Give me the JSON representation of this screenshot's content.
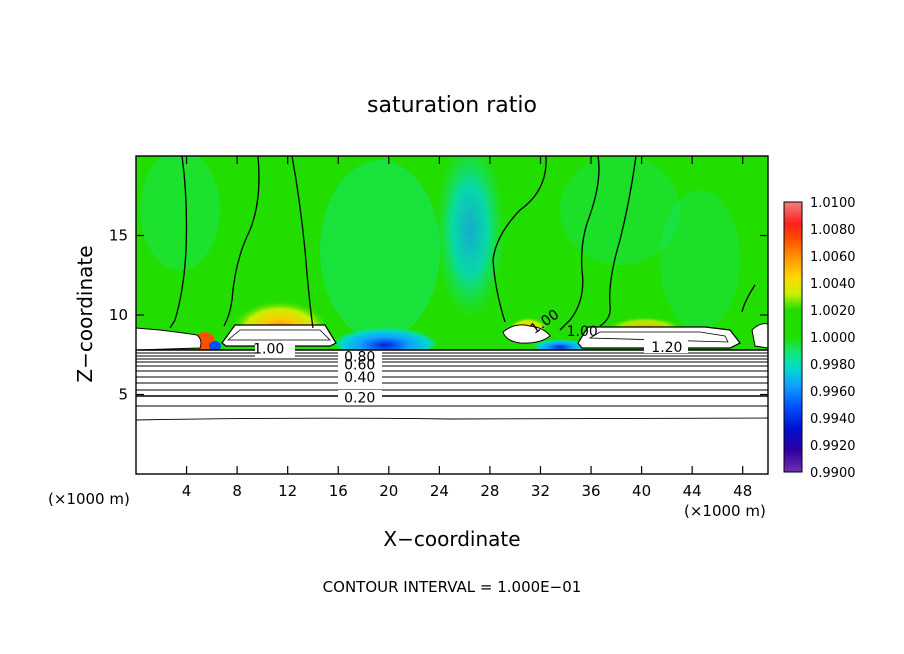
{
  "chart_data": {
    "type": "heatmap",
    "title": "saturation ratio",
    "xlabel": "X−coordinate",
    "ylabel": "Z−coordinate",
    "x_unit_left": "(×1000 m)",
    "x_unit_right": "(×1000 m)",
    "footer": "CONTOUR INTERVAL = 1.000E−01",
    "xlim": [
      0,
      50
    ],
    "ylim": [
      0,
      20
    ],
    "x_ticks": [
      4,
      8,
      12,
      16,
      20,
      24,
      28,
      32,
      36,
      40,
      44,
      48
    ],
    "y_ticks": [
      5,
      10,
      15
    ],
    "colorbar": {
      "min": 0.99,
      "max": 1.01,
      "labels": [
        "1.0100",
        "1.0080",
        "1.0060",
        "1.0040",
        "1.0020",
        "1.0000",
        "0.9980",
        "0.9960",
        "0.9940",
        "0.9920",
        "0.9900"
      ],
      "colors": [
        "#f08080",
        "#ff2020",
        "#ff5000",
        "#ff9000",
        "#ffd800",
        "#c8f000",
        "#22dd00",
        "#10e880",
        "#00d8d0",
        "#10a0ff",
        "#0050ff",
        "#0010d0",
        "#3000a0",
        "#7030b0"
      ]
    },
    "contour_labels": [
      {
        "text": "1.00",
        "x": 10.5,
        "z": 7.9
      },
      {
        "text": "1.20",
        "x": 42.0,
        "z": 8.0
      },
      {
        "text": "1.00",
        "x": 32.3,
        "z": 9.6
      },
      {
        "text": "1.00",
        "x": 35.3,
        "z": 9.0
      },
      {
        "text": "0.80",
        "x": 17.7,
        "z": 7.4
      },
      {
        "text": "0.60",
        "x": 17.7,
        "z": 6.9
      },
      {
        "text": "0.40",
        "x": 17.7,
        "z": 6.1
      },
      {
        "text": "0.20",
        "x": 17.7,
        "z": 4.8
      }
    ],
    "grid": false
  }
}
